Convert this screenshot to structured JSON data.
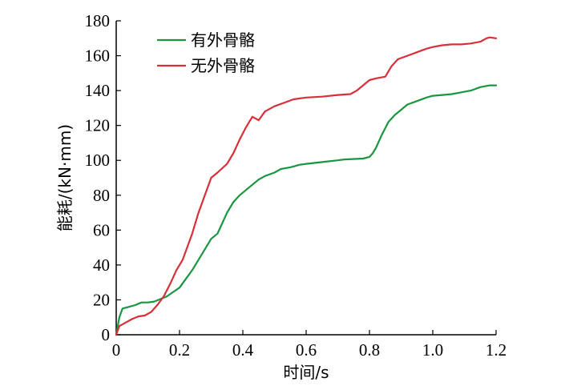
{
  "chart_data": {
    "type": "line",
    "xlabel": "时间/s",
    "ylabel": "能耗/(kN·mm)",
    "xlim": [
      0,
      1.2
    ],
    "ylim": [
      0,
      180
    ],
    "xticks": [
      0,
      0.2,
      0.4,
      0.6,
      0.8,
      1.0,
      1.2
    ],
    "xtick_labels": [
      "0",
      "0.2",
      "0.4",
      "0.6",
      "0.8",
      "1.0",
      "1.2"
    ],
    "yticks": [
      0,
      20,
      40,
      60,
      80,
      100,
      120,
      140,
      160,
      180
    ],
    "ytick_labels": [
      "0",
      "20",
      "40",
      "60",
      "80",
      "100",
      "120",
      "140",
      "160",
      "180"
    ],
    "grid": false,
    "legend_position": "top-left",
    "series": [
      {
        "name": "有外骨骼",
        "color": "#1a9641",
        "points": [
          [
            0,
            0
          ],
          [
            0.01,
            10
          ],
          [
            0.02,
            15
          ],
          [
            0.04,
            16
          ],
          [
            0.06,
            17
          ],
          [
            0.08,
            18.5
          ],
          [
            0.1,
            18.5
          ],
          [
            0.12,
            19
          ],
          [
            0.14,
            20.5
          ],
          [
            0.16,
            22
          ],
          [
            0.18,
            24.5
          ],
          [
            0.2,
            27
          ],
          [
            0.22,
            32
          ],
          [
            0.24,
            37
          ],
          [
            0.26,
            43
          ],
          [
            0.28,
            49
          ],
          [
            0.3,
            55
          ],
          [
            0.32,
            58
          ],
          [
            0.33,
            62
          ],
          [
            0.35,
            70
          ],
          [
            0.37,
            76
          ],
          [
            0.39,
            80
          ],
          [
            0.41,
            83
          ],
          [
            0.43,
            86
          ],
          [
            0.45,
            89
          ],
          [
            0.47,
            91
          ],
          [
            0.5,
            93
          ],
          [
            0.52,
            95
          ],
          [
            0.55,
            96
          ],
          [
            0.58,
            97.5
          ],
          [
            0.6,
            98
          ],
          [
            0.65,
            99
          ],
          [
            0.7,
            100
          ],
          [
            0.72,
            100.5
          ],
          [
            0.78,
            101
          ],
          [
            0.8,
            102
          ],
          [
            0.81,
            104
          ],
          [
            0.82,
            107
          ],
          [
            0.84,
            115
          ],
          [
            0.86,
            122
          ],
          [
            0.88,
            126
          ],
          [
            0.9,
            129
          ],
          [
            0.92,
            132
          ],
          [
            0.95,
            134
          ],
          [
            0.98,
            136
          ],
          [
            1.0,
            137
          ],
          [
            1.03,
            137.5
          ],
          [
            1.06,
            138
          ],
          [
            1.09,
            139
          ],
          [
            1.12,
            140
          ],
          [
            1.15,
            142
          ],
          [
            1.18,
            143
          ],
          [
            1.2,
            143
          ]
        ]
      },
      {
        "name": "无外骨骼",
        "color": "#d7303a",
        "points": [
          [
            0,
            0
          ],
          [
            0.01,
            5
          ],
          [
            0.03,
            7
          ],
          [
            0.05,
            9
          ],
          [
            0.07,
            10.5
          ],
          [
            0.09,
            11
          ],
          [
            0.11,
            13
          ],
          [
            0.13,
            17
          ],
          [
            0.15,
            22
          ],
          [
            0.17,
            29
          ],
          [
            0.19,
            37
          ],
          [
            0.21,
            43
          ],
          [
            0.22,
            48
          ],
          [
            0.24,
            58
          ],
          [
            0.26,
            70
          ],
          [
            0.28,
            80
          ],
          [
            0.3,
            90
          ],
          [
            0.32,
            93
          ],
          [
            0.35,
            98
          ],
          [
            0.37,
            104
          ],
          [
            0.39,
            112
          ],
          [
            0.41,
            119
          ],
          [
            0.43,
            125
          ],
          [
            0.45,
            123
          ],
          [
            0.47,
            128
          ],
          [
            0.5,
            131
          ],
          [
            0.53,
            133
          ],
          [
            0.56,
            135
          ],
          [
            0.6,
            136
          ],
          [
            0.65,
            136.5
          ],
          [
            0.7,
            137.5
          ],
          [
            0.74,
            138
          ],
          [
            0.76,
            140
          ],
          [
            0.8,
            146
          ],
          [
            0.82,
            147
          ],
          [
            0.85,
            148
          ],
          [
            0.87,
            154
          ],
          [
            0.89,
            158
          ],
          [
            0.92,
            160
          ],
          [
            0.95,
            162
          ],
          [
            0.98,
            164
          ],
          [
            1.0,
            165
          ],
          [
            1.03,
            166
          ],
          [
            1.06,
            166.5
          ],
          [
            1.09,
            166.5
          ],
          [
            1.12,
            167
          ],
          [
            1.15,
            168
          ],
          [
            1.17,
            170
          ],
          [
            1.18,
            170.5
          ],
          [
            1.2,
            170
          ]
        ]
      }
    ]
  }
}
